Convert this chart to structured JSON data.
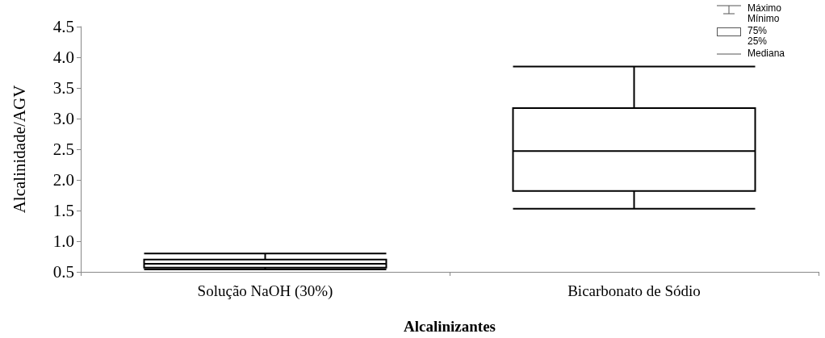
{
  "chart_data": {
    "type": "box",
    "xlabel": "Alcalinizantes",
    "ylabel": "Alcalinidade/AGV",
    "categories": [
      "Solução NaOH (30%)",
      "Bicarbonato de Sódio"
    ],
    "boxes": [
      {
        "low": 0.54,
        "q1": 0.57,
        "median": 0.63,
        "q3": 0.7,
        "high": 0.8
      },
      {
        "low": 1.53,
        "q1": 1.82,
        "median": 2.47,
        "q3": 3.17,
        "high": 3.85
      }
    ],
    "ylim": [
      0.5,
      4.5
    ],
    "yticks": [
      {
        "value": 0.5,
        "label": "0.5"
      },
      {
        "value": 1,
        "label": "1.0"
      },
      {
        "value": 1.5,
        "label": "1.5"
      },
      {
        "value": 2,
        "label": "2.0"
      },
      {
        "value": 2.5,
        "label": "2.5"
      },
      {
        "value": 3,
        "label": "3.0"
      },
      {
        "value": 3.5,
        "label": "3.5"
      },
      {
        "value": 4,
        "label": "4.0"
      },
      {
        "value": 4.5,
        "label": "4.5"
      }
    ],
    "annotations": [
      "Máximo",
      "Mínimo",
      "75%",
      "25%",
      "Mediana"
    ]
  }
}
